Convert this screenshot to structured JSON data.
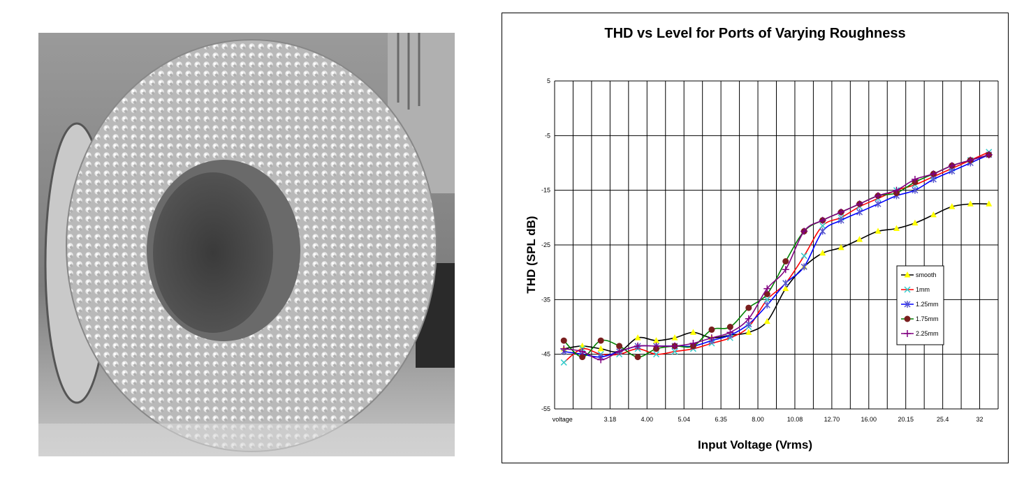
{
  "photo": {
    "description_icon": "dimpled-port-photo"
  },
  "chart_data": {
    "type": "line",
    "title": "THD vs Level for Ports of Varying Roughness",
    "xlabel": "Input Voltage (Vrms)",
    "ylabel": "THD (SPL dB)",
    "x_tick_labels": [
      "voltage",
      "3.18",
      "4.00",
      "5.04",
      "6.35",
      "8.00",
      "10.08",
      "12.70",
      "16.00",
      "20.15",
      "25.4",
      "32"
    ],
    "ylim": [
      -55,
      5
    ],
    "y_ticks": [
      5,
      -5,
      -15,
      -25,
      -35,
      -45,
      -55
    ],
    "grid": true,
    "legend_position": "right-middle",
    "series": [
      {
        "name": "smooth",
        "color": "#000000",
        "marker_color": "#ffff00",
        "marker": "triangle",
        "values": [
          -44,
          -43.5,
          -44,
          -44.5,
          -42,
          -42.5,
          -42,
          -41,
          -42,
          -41.5,
          -41,
          -39,
          -33,
          -29,
          -26.5,
          -25.5,
          -24,
          -22.5,
          -22,
          -21,
          -19.5,
          -18,
          -17.5,
          -17.5
        ]
      },
      {
        "name": "1mm",
        "color": "#ff0000",
        "marker_color": "#33cccc",
        "marker": "x",
        "values": [
          -46.5,
          -44,
          -45,
          -45,
          -44,
          -45,
          -44.5,
          -44,
          -43,
          -42,
          -40,
          -35,
          -32,
          -27,
          -21.5,
          -20,
          -18,
          -16.5,
          -15,
          -14,
          -12.5,
          -11,
          -9.5,
          -8
        ]
      },
      {
        "name": "1.25mm",
        "color": "#0000ff",
        "marker_color": "#5555cc",
        "marker": "star",
        "values": [
          -44.5,
          -45,
          -45.5,
          -44.5,
          -43.5,
          -43.5,
          -43.5,
          -43.5,
          -42.5,
          -41.5,
          -39.5,
          -36,
          -32,
          -29,
          -22.5,
          -20.5,
          -19,
          -17.5,
          -16,
          -15,
          -13,
          -11.5,
          -10,
          -8.5
        ]
      },
      {
        "name": "1.75mm",
        "color": "#008000",
        "marker_color": "#7a1f1f",
        "marker": "circle",
        "values": [
          -42.5,
          -45.5,
          -42.5,
          -43.5,
          -45.5,
          -44,
          -43.5,
          -43.5,
          -40.5,
          -40,
          -36.5,
          -34,
          -28,
          -22.5,
          -20.5,
          -19,
          -17.5,
          -16,
          -15.5,
          -13.5,
          -12,
          -10.5,
          -9.5,
          -8.5
        ]
      },
      {
        "name": "2.25mm",
        "color": "#800080",
        "marker_color": "#800080",
        "marker": "plus",
        "values": [
          -44,
          -44.5,
          -46,
          -44.5,
          -43.5,
          -43.5,
          -43.5,
          -43,
          -42,
          -41,
          -38.5,
          -33,
          -29.5,
          -22.5,
          -20.5,
          -19,
          -17.5,
          -16,
          -15,
          -13,
          -12,
          -10.5,
          -9.5,
          -8.5
        ]
      }
    ]
  }
}
